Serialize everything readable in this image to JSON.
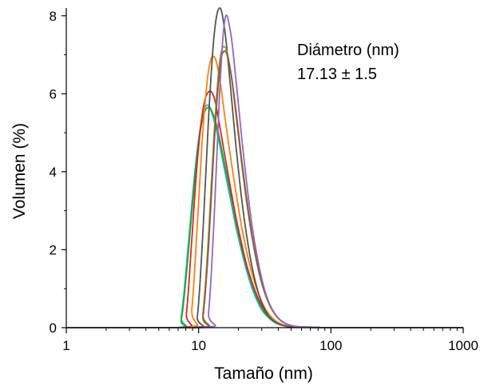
{
  "chart_data": {
    "type": "line",
    "xlabel": "Tamaño (nm)",
    "ylabel": "Volumen (%)",
    "xscale": "log",
    "xlim": [
      1,
      1000
    ],
    "ylim": [
      0,
      8.2
    ],
    "x_ticks": [
      1,
      10,
      100,
      1000
    ],
    "x_tick_labels": [
      "1",
      "10",
      "100",
      "1000"
    ],
    "y_ticks": [
      0,
      2,
      4,
      6,
      8
    ],
    "y_tick_labels": [
      "0",
      "2",
      "4",
      "6",
      "8"
    ],
    "grid": false,
    "legend": "none",
    "annotations": [
      "Diámetro (nm)",
      "17.13 ± 1.5"
    ],
    "series": [
      {
        "color": "#17becf",
        "x": [
          1,
          6.8,
          7.4,
          8.1,
          8.9,
          9.8,
          10.8,
          11.9,
          13.1,
          14.4,
          15.8,
          17.4,
          19.1,
          21.0,
          23.1,
          25.4,
          28.0,
          30.8,
          33.9,
          37.3,
          41.0,
          45.1,
          49.6,
          54.6,
          60,
          80,
          100,
          1000
        ],
        "y": [
          0,
          0,
          0.3,
          1.6,
          3.2,
          4.6,
          5.5,
          5.7,
          5.3,
          4.7,
          4.0,
          3.3,
          2.6,
          2.0,
          1.45,
          1.0,
          0.65,
          0.4,
          0.25,
          0.14,
          0.08,
          0.05,
          0.03,
          0.02,
          0.01,
          0.01,
          0,
          0
        ]
      },
      {
        "color": "#2ca02c",
        "x": [
          1,
          6.8,
          7.4,
          8.1,
          8.9,
          9.8,
          10.8,
          11.9,
          13.1,
          14.4,
          15.8,
          17.4,
          19.1,
          21.0,
          23.1,
          25.4,
          28.0,
          30.8,
          33.9,
          37.3,
          41.0,
          45.1,
          49.6,
          54.6,
          60,
          80,
          100,
          1000
        ],
        "y": [
          0,
          0,
          0.2,
          1.4,
          3.0,
          4.5,
          5.4,
          5.65,
          5.4,
          4.85,
          4.15,
          3.45,
          2.75,
          2.1,
          1.55,
          1.1,
          0.72,
          0.45,
          0.27,
          0.16,
          0.09,
          0.05,
          0.03,
          0.02,
          0.01,
          0.01,
          0,
          0
        ]
      },
      {
        "color": "#d62728",
        "x": [
          1,
          7.4,
          8.1,
          8.9,
          9.8,
          10.8,
          11.9,
          13.1,
          14.4,
          15.8,
          17.4,
          19.1,
          21.0,
          23.1,
          25.4,
          28.0,
          30.8,
          33.9,
          37.3,
          41.0,
          45.1,
          49.6,
          54.6,
          60,
          80,
          100,
          1000
        ],
        "y": [
          0,
          0,
          0.4,
          2.3,
          4.3,
          5.6,
          6.05,
          5.9,
          5.2,
          4.4,
          3.6,
          2.85,
          2.2,
          1.6,
          1.15,
          0.78,
          0.5,
          0.3,
          0.18,
          0.1,
          0.06,
          0.03,
          0.02,
          0.01,
          0.01,
          0,
          0
        ]
      },
      {
        "color": "#ff7f0e",
        "x": [
          1,
          8.1,
          8.9,
          9.8,
          10.8,
          11.9,
          13.1,
          14.4,
          15.8,
          17.4,
          19.1,
          21.0,
          23.1,
          25.4,
          28.0,
          30.8,
          33.9,
          37.3,
          41.0,
          45.1,
          49.6,
          54.6,
          60,
          80,
          100,
          1000
        ],
        "y": [
          0,
          0,
          0.5,
          2.7,
          5.1,
          6.6,
          6.95,
          6.4,
          5.4,
          4.4,
          3.5,
          2.65,
          1.95,
          1.38,
          0.92,
          0.58,
          0.35,
          0.2,
          0.11,
          0.06,
          0.03,
          0.02,
          0.01,
          0.01,
          0,
          0
        ]
      },
      {
        "color": "#555555",
        "x": [
          1,
          8.9,
          9.8,
          10.8,
          11.9,
          13.1,
          14.4,
          15.8,
          17.4,
          19.1,
          21.0,
          23.1,
          25.4,
          28.0,
          30.8,
          33.9,
          37.3,
          41.0,
          45.1,
          49.6,
          54.6,
          60,
          80,
          100,
          1000
        ],
        "y": [
          0,
          0,
          0.3,
          2.5,
          5.4,
          7.5,
          8.2,
          7.6,
          6.2,
          4.7,
          3.4,
          2.35,
          1.55,
          0.95,
          0.55,
          0.3,
          0.16,
          0.08,
          0.04,
          0.02,
          0.01,
          0.01,
          0,
          0,
          0
        ]
      },
      {
        "color": "#9a9a1a",
        "x": [
          1,
          9.8,
          10.8,
          11.9,
          13.1,
          14.4,
          15.8,
          17.4,
          19.1,
          21.0,
          23.1,
          25.4,
          28.0,
          30.8,
          33.9,
          37.3,
          41.0,
          45.1,
          49.6,
          54.6,
          60,
          80,
          100,
          1000
        ],
        "y": [
          0,
          0,
          0.4,
          2.4,
          5.0,
          6.8,
          7.2,
          6.6,
          5.5,
          4.3,
          3.2,
          2.3,
          1.55,
          1.0,
          0.62,
          0.36,
          0.2,
          0.11,
          0.06,
          0.03,
          0.02,
          0.01,
          0,
          0
        ]
      },
      {
        "color": "#8c564b",
        "x": [
          1,
          9.8,
          10.8,
          11.9,
          13.1,
          14.4,
          15.8,
          17.4,
          19.1,
          21.0,
          23.1,
          25.4,
          28.0,
          30.8,
          33.9,
          37.3,
          41.0,
          45.1,
          49.6,
          54.6,
          60,
          80,
          100,
          1000
        ],
        "y": [
          0,
          0,
          0.3,
          2.1,
          4.7,
          6.6,
          7.1,
          6.6,
          5.6,
          4.4,
          3.3,
          2.35,
          1.6,
          1.03,
          0.64,
          0.38,
          0.21,
          0.11,
          0.06,
          0.03,
          0.02,
          0.01,
          0,
          0
        ]
      },
      {
        "color": "#9467bd",
        "x": [
          1,
          10.8,
          11.9,
          13.1,
          14.4,
          15.8,
          17.4,
          19.1,
          21.0,
          23.1,
          25.4,
          28.0,
          30.8,
          33.9,
          37.3,
          41.0,
          45.1,
          49.6,
          54.6,
          60,
          80,
          100,
          1000
        ],
        "y": [
          0,
          0,
          0.4,
          2.8,
          6.0,
          7.9,
          7.6,
          6.4,
          5.0,
          3.7,
          2.6,
          1.75,
          1.1,
          0.66,
          0.38,
          0.21,
          0.11,
          0.06,
          0.03,
          0.02,
          0.01,
          0,
          0
        ]
      }
    ]
  }
}
